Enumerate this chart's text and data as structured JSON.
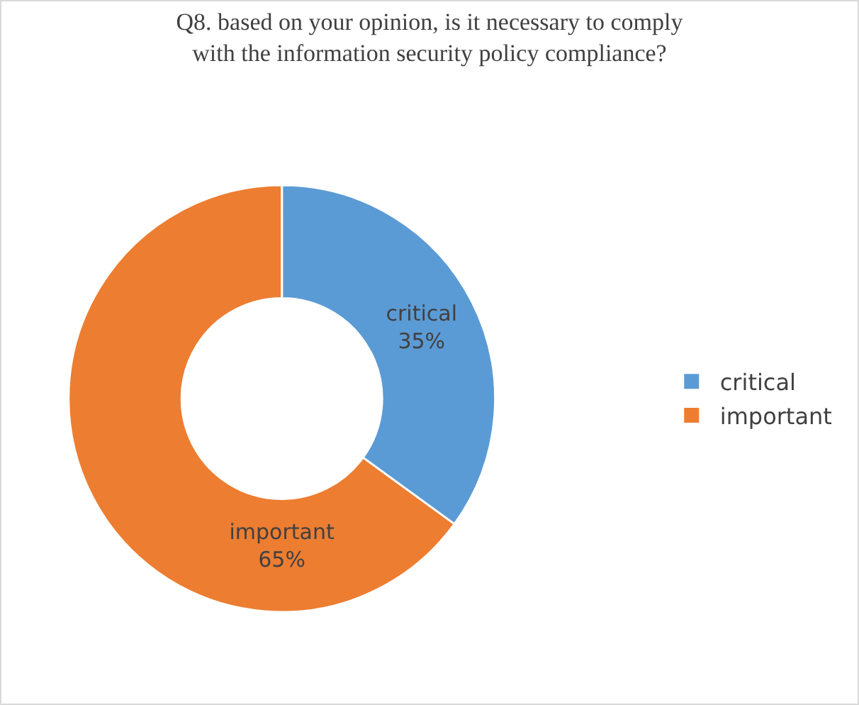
{
  "chart_data": {
    "type": "donut",
    "title": "Q8. based on your opinion, is it necessary to comply with the information security policy compliance?",
    "categories": [
      "critical",
      "important"
    ],
    "values": [
      35,
      65
    ],
    "colors": [
      "#5b9bd5",
      "#ed7d31"
    ],
    "value_labels": [
      "35%",
      "65%"
    ],
    "legend": "right"
  }
}
